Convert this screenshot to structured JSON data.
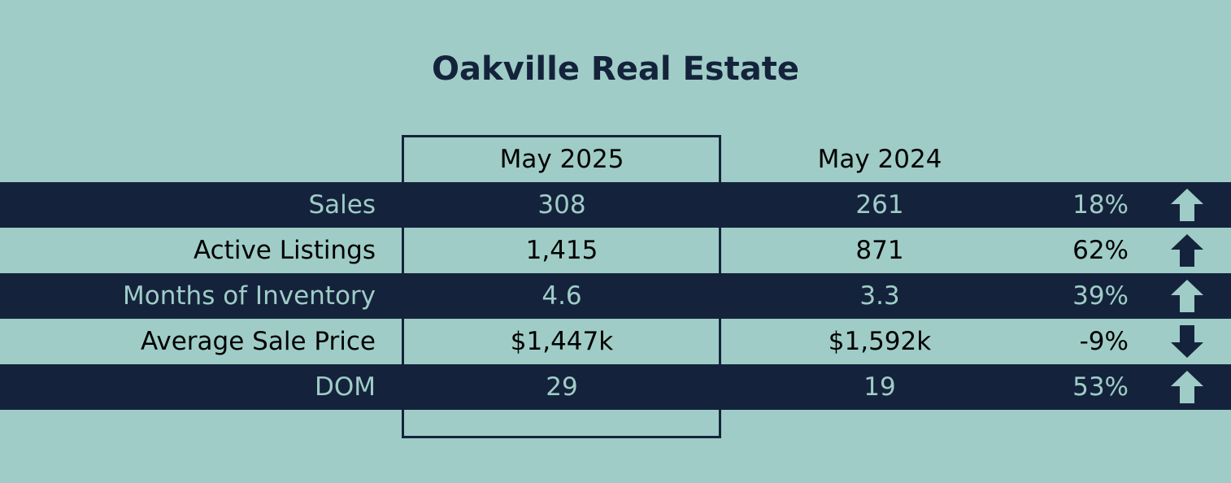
{
  "header": {
    "title": "Oakville Real Estate"
  },
  "table": {
    "columns": [
      "May 2025",
      "May 2024"
    ],
    "rows": [
      [
        "Sales",
        "308",
        "261",
        "18%"
      ],
      [
        "Active Listings",
        "1,415",
        "871",
        "62%"
      ],
      [
        "Months of Inventory",
        "4.6",
        "3.3",
        "39%"
      ],
      [
        "Average Sale Price",
        "$1,447k",
        "$1,592k",
        "-9%"
      ],
      [
        "DOM",
        "29",
        "19",
        "53%"
      ]
    ]
  }
}
